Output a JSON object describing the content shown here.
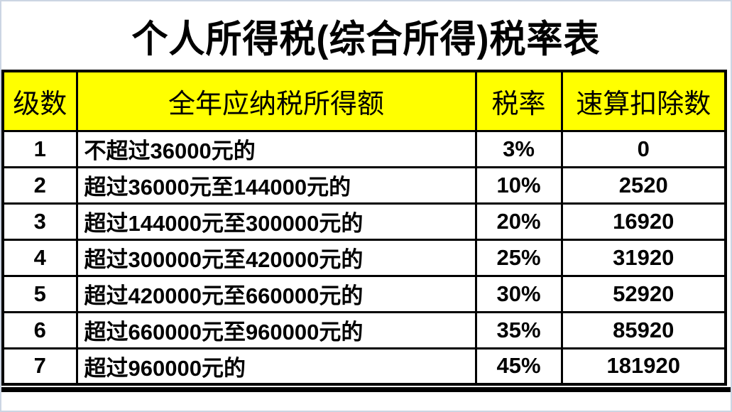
{
  "title": "个人所得税(综合所得)税率表",
  "colors": {
    "header_bg": "#ffff00",
    "table_border": "#000000",
    "frame_border": "#ccd5e3",
    "text": "#000000",
    "background": "#ffffff"
  },
  "table": {
    "headers": [
      "级数",
      "全年应纳税所得额",
      "税率",
      "速算扣除数"
    ],
    "rows": [
      {
        "level": "1",
        "income": "不超过36000元的",
        "rate": "3%",
        "deduction": "0"
      },
      {
        "level": "2",
        "income": "超过36000元至144000元的",
        "rate": "10%",
        "deduction": "2520"
      },
      {
        "level": "3",
        "income": "超过144000元至300000元的",
        "rate": "20%",
        "deduction": "16920"
      },
      {
        "level": "4",
        "income": "超过300000元至420000元的",
        "rate": "25%",
        "deduction": "31920"
      },
      {
        "level": "5",
        "income": "超过420000元至660000元的",
        "rate": "30%",
        "deduction": "52920"
      },
      {
        "level": "6",
        "income": "超过660000元至960000元的",
        "rate": "35%",
        "deduction": "85920"
      },
      {
        "level": "7",
        "income": "超过960000元的",
        "rate": "45%",
        "deduction": "181920"
      }
    ]
  }
}
